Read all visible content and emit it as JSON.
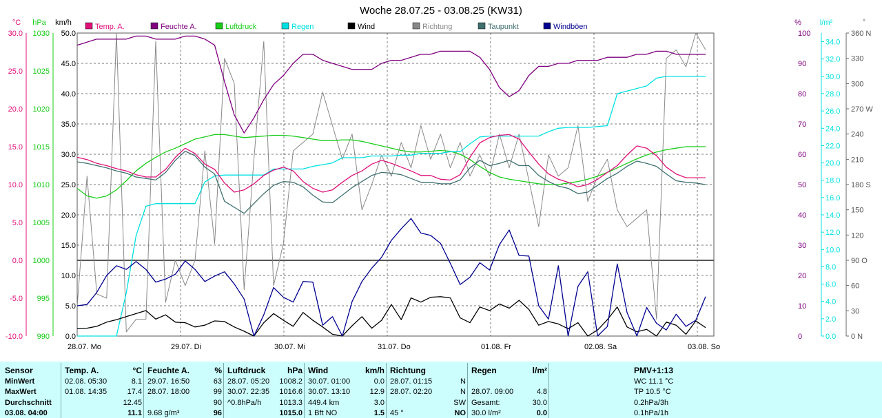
{
  "title": "Woche 28.07.25 - 03.08.25 (KW31)",
  "colors": {
    "temp": "#e0107a",
    "hum": "#800080",
    "press": "#18cc18",
    "rain": "#00e0e0",
    "wind": "#000000",
    "dir": "#888888",
    "dew": "#3f6f6f",
    "gust": "#000090",
    "stats_bg": "#ccfefe"
  },
  "chart_data": {
    "type": "line",
    "title": "Woche 28.07.25 - 03.08.25 (KW31)",
    "x_ticks": [
      "28.07. Mo",
      "29.07. Di",
      "30.07. Mi",
      "31.07. Do",
      "01.08. Fr",
      "02.08. Sa",
      "03.08. So"
    ],
    "axes": {
      "kmh": {
        "unit": "km/h",
        "range": [
          0,
          50
        ],
        "ticks": [
          "50.0",
          "45.0",
          "40.0",
          "35.0",
          "30.0",
          "25.0",
          "20.0",
          "15.0",
          "10.0",
          "5.0",
          "0.0"
        ]
      },
      "temp": {
        "unit": "°C",
        "range": [
          -10,
          30
        ],
        "ticks": [
          "30.0",
          "25.0",
          "20.0",
          "15.0",
          "10.0",
          "5.0",
          "0.0",
          "-5.0",
          "-10.0"
        ]
      },
      "press": {
        "unit": "hPa",
        "range": [
          990,
          1030
        ],
        "ticks": [
          "1030",
          "1025",
          "1020",
          "1015",
          "1010",
          "1005",
          "1000",
          "995",
          "990"
        ]
      },
      "hum": {
        "unit": "%",
        "range": [
          0,
          100
        ],
        "ticks": [
          "100",
          "90",
          "80",
          "70",
          "60",
          "50",
          "40",
          "30",
          "20",
          "10",
          "0"
        ]
      },
      "rain": {
        "unit": "l/m²",
        "range": [
          0,
          35
        ],
        "ticks": [
          "34.0",
          "32.0",
          "30.0",
          "28.0",
          "26.0",
          "24.0",
          "22.0",
          "20.0",
          "18.0",
          "16.0",
          "14.0",
          "12.0",
          "10.0",
          "8.0",
          "6.0",
          "4.0",
          "2.0",
          "0.0"
        ]
      },
      "dir": {
        "unit": "°",
        "range": [
          0,
          360
        ],
        "ticks": [
          "360 N",
          "330",
          "300",
          "270 W",
          "240",
          "210",
          "180 S",
          "150",
          "120",
          "90 O",
          "60",
          "30",
          "0 N"
        ]
      }
    },
    "legend": [
      "Temp. A.",
      "Feuchte A.",
      "Luftdruck",
      "Regen",
      "Wind",
      "Richtung",
      "Taupunkt",
      "Windböen"
    ],
    "grid": true,
    "series": [
      {
        "name": "Temp. A.",
        "axis": "temp",
        "color": "#e0107a",
        "values": [
          13.6,
          13.3,
          12.8,
          12.5,
          12.1,
          11.8,
          11.3,
          11.0,
          11.0,
          12.0,
          13.6,
          14.8,
          14.1,
          12.7,
          12.0,
          10.2,
          9.0,
          9.3,
          10.1,
          11.2,
          11.9,
          12.3,
          11.8,
          10.4,
          9.5,
          9.0,
          9.3,
          10.3,
          11.2,
          11.8,
          12.7,
          13.2,
          12.8,
          12.3,
          11.8,
          11.2,
          11.2,
          10.7,
          10.6,
          11.3,
          13.6,
          15.5,
          16.2,
          16.5,
          16.6,
          16.0,
          14.3,
          12.7,
          11.4,
          10.7,
          10.3,
          9.7,
          10.0,
          10.7,
          11.6,
          12.5,
          13.9,
          15.1,
          14.8,
          13.8,
          12.3,
          11.4,
          10.9,
          10.9,
          10.9
        ]
      },
      {
        "name": "Feuchte A.",
        "axis": "hum",
        "color": "#800080",
        "values": [
          96,
          97,
          98,
          98,
          98,
          98,
          99,
          99,
          98,
          98,
          98,
          99,
          99,
          98,
          96,
          84,
          73,
          67,
          72,
          78,
          83,
          86,
          90,
          93,
          93,
          91,
          90,
          89,
          88,
          88,
          88,
          90,
          91,
          91,
          92,
          93,
          93,
          94,
          94,
          94,
          94,
          92,
          88,
          82,
          79,
          81,
          86,
          89,
          89,
          90,
          90,
          91,
          91,
          91,
          92,
          92,
          92,
          93,
          93,
          94,
          94,
          93,
          93,
          93,
          93
        ]
      },
      {
        "name": "Luftdruck",
        "axis": "press",
        "color": "#18cc18",
        "values": [
          1009.5,
          1008.5,
          1008.2,
          1008.5,
          1009.3,
          1010.5,
          1011.8,
          1012.8,
          1013.6,
          1014.3,
          1014.8,
          1015.4,
          1016.0,
          1016.3,
          1016.6,
          1016.6,
          1016.4,
          1016.2,
          1016.3,
          1016.4,
          1016.5,
          1016.5,
          1016.4,
          1016.2,
          1016.0,
          1015.8,
          1015.8,
          1015.9,
          1015.9,
          1015.7,
          1015.4,
          1015.1,
          1014.8,
          1014.5,
          1014.3,
          1014.3,
          1014.4,
          1014.5,
          1014.4,
          1014.0,
          1013.3,
          1012.4,
          1011.6,
          1011.0,
          1010.7,
          1010.5,
          1010.3,
          1010.1,
          1010.0,
          1010.0,
          1010.2,
          1010.4,
          1010.7,
          1011.1,
          1011.6,
          1012.2,
          1012.8,
          1013.4,
          1013.9,
          1014.3,
          1014.6,
          1014.8,
          1015.0,
          1015.0,
          1015.0
        ]
      },
      {
        "name": "Regen",
        "axis": "rain",
        "color": "#00e0e0",
        "values": [
          0,
          0,
          0,
          0,
          0,
          5.0,
          11.6,
          15.0,
          15.3,
          15.3,
          15.3,
          15.3,
          15.3,
          17.8,
          18.5,
          18.6,
          18.6,
          18.6,
          18.6,
          18.6,
          19.3,
          19.3,
          19.3,
          19.3,
          19.6,
          19.8,
          20.0,
          20.6,
          20.6,
          20.6,
          20.8,
          20.8,
          20.8,
          20.9,
          20.9,
          21.1,
          21.1,
          21.1,
          21.3,
          21.3,
          22.2,
          23.0,
          23.1,
          23.1,
          23.1,
          23.1,
          23.1,
          23.1,
          23.6,
          24.0,
          24.1,
          24.1,
          24.1,
          24.2,
          24.3,
          28.0,
          28.3,
          28.6,
          28.9,
          29.8,
          30.0,
          30.0,
          30.0,
          30.0,
          30.0
        ]
      },
      {
        "name": "Taupunkt",
        "axis": "temp",
        "color": "#3f6f6f",
        "values": [
          13.0,
          12.8,
          12.5,
          12.2,
          11.8,
          11.5,
          11.0,
          10.8,
          10.6,
          11.6,
          13.2,
          14.4,
          13.8,
          12.3,
          11.4,
          7.8,
          7.0,
          6.2,
          7.5,
          8.8,
          9.9,
          10.4,
          10.3,
          9.7,
          8.6,
          7.7,
          7.6,
          8.6,
          9.6,
          10.4,
          11.2,
          11.6,
          11.5,
          11.3,
          10.8,
          10.3,
          10.3,
          10.1,
          10.1,
          10.6,
          12.2,
          13.2,
          12.5,
          12.8,
          13.2,
          12.5,
          12.5,
          11.2,
          10.4,
          9.8,
          9.5,
          8.8,
          9.0,
          9.9,
          10.8,
          11.5,
          12.4,
          13.1,
          12.8,
          12.4,
          11.4,
          10.5,
          10.3,
          10.2,
          10.0
        ]
      },
      {
        "name": "Wind",
        "axis": "kmh",
        "color": "#000000",
        "values": [
          1.2,
          1.3,
          1.6,
          2.3,
          2.7,
          3.2,
          3.7,
          4.2,
          2.8,
          3.5,
          2.3,
          2.2,
          1.5,
          1.8,
          2.5,
          2.4,
          1.5,
          0.8,
          0.0,
          2.2,
          3.7,
          2.6,
          1.6,
          3.9,
          2.6,
          1.5,
          0.3,
          0.0,
          1.7,
          3.2,
          1.3,
          2.6,
          5.2,
          2.7,
          6.3,
          5.6,
          6.4,
          6.5,
          6.3,
          3.0,
          2.2,
          4.8,
          4.2,
          5.3,
          4.6,
          5.9,
          4.4,
          1.8,
          2.4,
          2.0,
          1.2,
          2.2,
          0.0,
          1.0,
          2.7,
          4.8,
          1.5,
          0.7,
          1.1,
          0.0,
          2.3,
          1.8,
          0.3,
          2.5,
          1.4
        ]
      },
      {
        "name": "Windböen",
        "axis": "kmh",
        "color": "#000090",
        "values": [
          5.0,
          5.2,
          7.2,
          10.0,
          11.6,
          11.0,
          12.3,
          11.0,
          8.9,
          9.4,
          10.2,
          12.4,
          11.0,
          9.0,
          9.9,
          10.6,
          8.6,
          6.1,
          0.0,
          3.5,
          8.0,
          6.4,
          5.6,
          9.0,
          8.9,
          1.8,
          3.2,
          0.0,
          5.7,
          9.0,
          11.2,
          13.0,
          15.8,
          17.7,
          19.4,
          17.0,
          16.6,
          15.3,
          12.0,
          8.5,
          9.7,
          12.1,
          10.9,
          15.1,
          17.5,
          13.3,
          13.2,
          5.0,
          2.8,
          11.6,
          0.0,
          8.2,
          10.6,
          0.0,
          1.6,
          11.9,
          3.9,
          0.0,
          4.7,
          2.1,
          1.0,
          3.6,
          1.6,
          2.6,
          6.5
        ]
      },
      {
        "name": "Richtung",
        "axis": "dir",
        "color": "#888888",
        "values": [
          35,
          190,
          50,
          45,
          360,
          5,
          20,
          20,
          350,
          40,
          90,
          60,
          90,
          220,
          110,
          330,
          300,
          55,
          210,
          350,
          60,
          110,
          220,
          230,
          240,
          290,
          250,
          210,
          240,
          150,
          180,
          215,
          190,
          230,
          200,
          250,
          210,
          240,
          200,
          230,
          190,
          215,
          190,
          240,
          200,
          240,
          185,
          130,
          215,
          190,
          200,
          250,
          160,
          190,
          210,
          150,
          130,
          140,
          150,
          20,
          330,
          340,
          320,
          360,
          340
        ]
      }
    ]
  },
  "stats": {
    "col_sensor": {
      "head": "Sensor",
      "rows": [
        "MinWert",
        "MaxWert",
        "Durchschnitt",
        "03.08. 04:00"
      ]
    },
    "col_temp": {
      "head": "Temp. A.",
      "unit": "°C",
      "rows": [
        [
          "02.08.  05:30",
          "8.1"
        ],
        [
          "01.08.  14:35",
          "17.4"
        ],
        [
          "",
          "12.45"
        ],
        [
          "",
          "11.1"
        ]
      ]
    },
    "col_hum": {
      "head": "Feuchte A.",
      "unit": "%",
      "rows": [
        [
          "29.07.  16:50",
          "63"
        ],
        [
          "28.07.  18:00",
          "99"
        ],
        [
          "",
          "90"
        ],
        [
          "9.68 g/m³",
          "96"
        ]
      ]
    },
    "col_press": {
      "head": "Luftdruck",
      "unit": "hPa",
      "rows": [
        [
          "28.07.  05:20",
          "1008.2"
        ],
        [
          "30.07.  22:35",
          "1016.6"
        ],
        [
          "^0.8hPa/h",
          "1013.3"
        ],
        [
          "",
          "1015.0"
        ]
      ]
    },
    "col_wind": {
      "head": "Wind",
      "unit": "km/h",
      "rows": [
        [
          "30.07.  01:00",
          "0.0"
        ],
        [
          "30.07.  13:10",
          "12.9"
        ],
        [
          "449.4 km",
          "3.0"
        ],
        [
          "1 Bft NO",
          "1.5"
        ]
      ]
    },
    "col_dir": {
      "head": "Richtung",
      "unit": "",
      "rows": [
        [
          "28.07.  01:15",
          "N"
        ],
        [
          "28.07.  02:20",
          "N"
        ],
        [
          "",
          "SW"
        ],
        [
          "45 °",
          "NO"
        ]
      ]
    },
    "col_rain": {
      "head": "Regen",
      "unit": "l/m²",
      "rows": [
        [
          "",
          ""
        ],
        [
          "28.07.  09:00",
          "4.8"
        ],
        [
          "Gesamt:",
          "30.0"
        ],
        [
          "30.0 l/m²",
          "0.0"
        ]
      ]
    },
    "col_pmv": {
      "head": "PMV+1:13",
      "rows": [
        "WC 11.1 °C",
        "TP 10.5 °C",
        "0.2hPa/3h",
        "0.1hPa/1h"
      ]
    }
  }
}
